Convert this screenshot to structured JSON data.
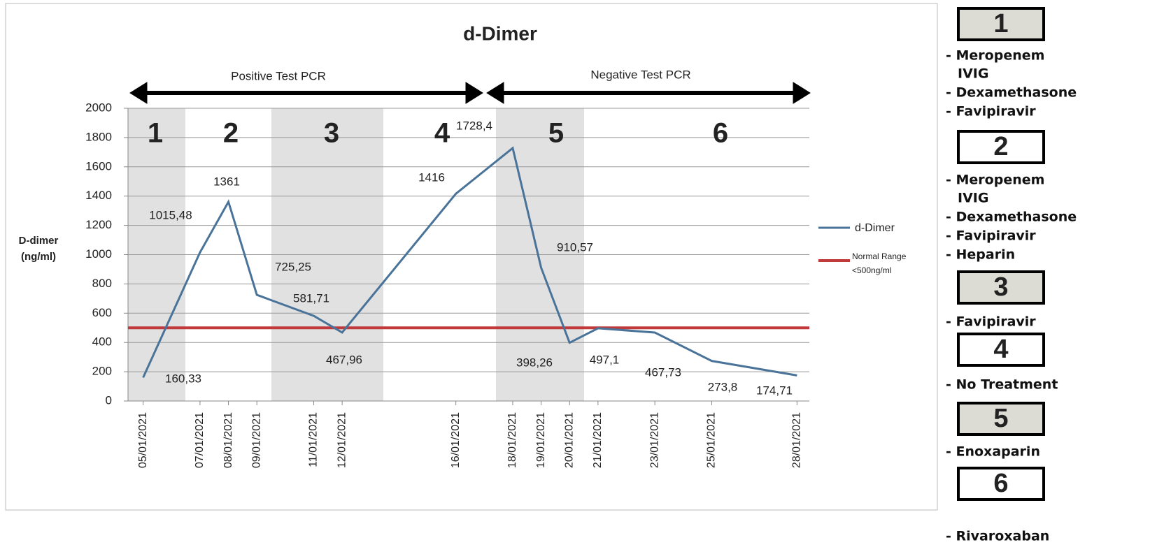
{
  "chart_data": {
    "type": "line",
    "title": "d-Dimer",
    "y_label": [
      "D-dimer",
      "(ng/ml)"
    ],
    "annotations": [
      "Positive Test PCR",
      "Negative Test PCR"
    ],
    "x": [
      "05/01/2021",
      "07/01/2021",
      "08/01/2021",
      "09/01/2021",
      "11/01/2021",
      "12/01/2021",
      "16/01/2021",
      "18/01/2021",
      "19/01/2021",
      "20/01/2021",
      "21/01/2021",
      "23/01/2021",
      "25/01/2021",
      "28/01/2021"
    ],
    "xlim": [
      "04/01/2021",
      "29/01/2021"
    ],
    "series": [
      {
        "name": "d-Dimer",
        "color": "#4a7399",
        "values": [
          160.33,
          1015.48,
          1361,
          725.25,
          581.71,
          467.96,
          1416,
          1728.4,
          910.57,
          398.26,
          497.1,
          467.73,
          273.8,
          174.71
        ],
        "value_labels": [
          "160,33",
          "1015,48",
          "1361",
          "725,25",
          "581,71",
          "467,96",
          "1416",
          "1728,4",
          "910,57",
          "398,26",
          "497,1",
          "467,73",
          "273,8",
          "174,71"
        ]
      }
    ],
    "reference_line": {
      "value": 500,
      "label": [
        "Normal Range",
        "<500ng/ml"
      ],
      "color": "#c0393b"
    },
    "ylim": [
      0,
      2000
    ],
    "yticks": [
      0,
      200,
      400,
      600,
      800,
      1000,
      1200,
      1400,
      1600,
      1800,
      2000
    ],
    "grid": true,
    "phases": [
      {
        "label": "1",
        "treatments": [
          "- Meropenem",
          "IVIG",
          "- Dexamethasone",
          "- Favipiravir"
        ]
      },
      {
        "label": "2",
        "treatments": [
          "- Meropenem",
          "IVIG",
          "- Dexamethasone",
          "- Favipiravir",
          "- Heparin"
        ]
      },
      {
        "label": "3",
        "treatments": [
          "- Favipiravir"
        ]
      },
      {
        "label": "4",
        "treatments": [
          "- No Treatment"
        ]
      },
      {
        "label": "5",
        "treatments": [
          "- Enoxaparin"
        ]
      },
      {
        "label": "6",
        "treatments": [
          "- Rivaroxaban"
        ]
      }
    ]
  }
}
